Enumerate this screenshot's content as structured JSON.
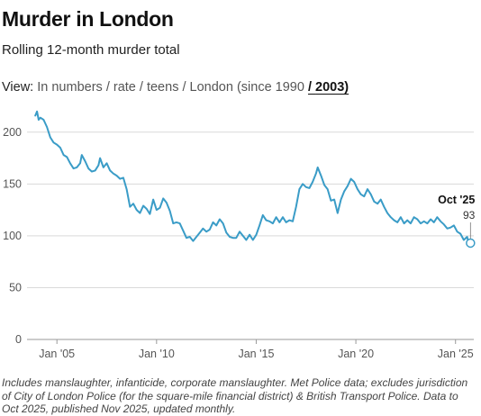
{
  "title": "Murder in London",
  "subtitle": "Rolling 12-month murder total",
  "view": {
    "prefix": "View:",
    "options": [
      "In numbers",
      "rate",
      "teens",
      "London (since 1990",
      "2003)"
    ],
    "separator": "/",
    "active_index": 4
  },
  "footnote": "Includes manslaughter, infanticide, corporate manslaughter. Met Police data; excludes jurisdiction of City of London Police (for the square-mile financial district) & British Transport Police. Data to Oct 2025, published Nov 2025, updated monthly.",
  "colors": {
    "line": "#3a9cc7",
    "grid": "#d9d9d9",
    "axis": "#555555",
    "text": "#222222"
  },
  "chart_data": {
    "type": "line",
    "title": "Murder in London",
    "subtitle": "Rolling 12-month murder total",
    "xlabel": "",
    "ylabel": "",
    "ylim": [
      0,
      225
    ],
    "xlim": [
      "2003-07",
      "2025-12"
    ],
    "yticks": [
      0,
      50,
      100,
      150,
      200
    ],
    "xticks": [
      {
        "label": "Jan '05",
        "date": "2005-01"
      },
      {
        "label": "Jan '10",
        "date": "2010-01"
      },
      {
        "label": "Jan '15",
        "date": "2015-01"
      },
      {
        "label": "Jan '20",
        "date": "2020-01"
      },
      {
        "label": "Jan '25",
        "date": "2025-01"
      }
    ],
    "grid": true,
    "series": [
      {
        "values": [
          [
            "2003-12",
            216
          ],
          [
            "2004-01",
            220
          ],
          [
            "2004-02",
            212
          ],
          [
            "2004-03",
            214
          ],
          [
            "2004-05",
            212
          ],
          [
            "2004-07",
            205
          ],
          [
            "2004-09",
            195
          ],
          [
            "2004-11",
            190
          ],
          [
            "2005-01",
            188
          ],
          [
            "2005-03",
            185
          ],
          [
            "2005-05",
            178
          ],
          [
            "2005-07",
            176
          ],
          [
            "2005-09",
            170
          ],
          [
            "2005-11",
            165
          ],
          [
            "2006-01",
            166
          ],
          [
            "2006-03",
            170
          ],
          [
            "2006-04",
            178
          ],
          [
            "2006-06",
            172
          ],
          [
            "2006-08",
            165
          ],
          [
            "2006-10",
            162
          ],
          [
            "2006-12",
            163
          ],
          [
            "2007-02",
            168
          ],
          [
            "2007-03",
            175
          ],
          [
            "2007-05",
            166
          ],
          [
            "2007-07",
            170
          ],
          [
            "2007-09",
            163
          ],
          [
            "2007-11",
            160
          ],
          [
            "2008-01",
            158
          ],
          [
            "2008-03",
            155
          ],
          [
            "2008-05",
            156
          ],
          [
            "2008-07",
            145
          ],
          [
            "2008-09",
            128
          ],
          [
            "2008-11",
            131
          ],
          [
            "2009-01",
            125
          ],
          [
            "2009-03",
            122
          ],
          [
            "2009-05",
            129
          ],
          [
            "2009-07",
            126
          ],
          [
            "2009-09",
            121
          ],
          [
            "2009-11",
            135
          ],
          [
            "2010-01",
            125
          ],
          [
            "2010-03",
            127
          ],
          [
            "2010-05",
            136
          ],
          [
            "2010-07",
            132
          ],
          [
            "2010-09",
            124
          ],
          [
            "2010-11",
            112
          ],
          [
            "2011-01",
            113
          ],
          [
            "2011-03",
            112
          ],
          [
            "2011-05",
            105
          ],
          [
            "2011-07",
            98
          ],
          [
            "2011-09",
            99
          ],
          [
            "2011-11",
            95
          ],
          [
            "2012-01",
            99
          ],
          [
            "2012-03",
            103
          ],
          [
            "2012-05",
            107
          ],
          [
            "2012-07",
            104
          ],
          [
            "2012-09",
            106
          ],
          [
            "2012-11",
            113
          ],
          [
            "2013-01",
            110
          ],
          [
            "2013-03",
            116
          ],
          [
            "2013-05",
            112
          ],
          [
            "2013-07",
            103
          ],
          [
            "2013-09",
            99
          ],
          [
            "2013-11",
            98
          ],
          [
            "2014-01",
            98
          ],
          [
            "2014-03",
            104
          ],
          [
            "2014-05",
            100
          ],
          [
            "2014-07",
            96
          ],
          [
            "2014-09",
            101
          ],
          [
            "2014-11",
            96
          ],
          [
            "2015-01",
            101
          ],
          [
            "2015-03",
            110
          ],
          [
            "2015-05",
            120
          ],
          [
            "2015-07",
            115
          ],
          [
            "2015-09",
            114
          ],
          [
            "2015-11",
            112
          ],
          [
            "2016-01",
            118
          ],
          [
            "2016-03",
            113
          ],
          [
            "2016-05",
            118
          ],
          [
            "2016-07",
            113
          ],
          [
            "2016-09",
            115
          ],
          [
            "2016-11",
            114
          ],
          [
            "2017-01",
            128
          ],
          [
            "2017-03",
            145
          ],
          [
            "2017-05",
            150
          ],
          [
            "2017-07",
            147
          ],
          [
            "2017-09",
            146
          ],
          [
            "2017-11",
            152
          ],
          [
            "2018-01",
            160
          ],
          [
            "2018-02",
            166
          ],
          [
            "2018-04",
            158
          ],
          [
            "2018-06",
            149
          ],
          [
            "2018-08",
            145
          ],
          [
            "2018-10",
            134
          ],
          [
            "2018-12",
            135
          ],
          [
            "2019-02",
            122
          ],
          [
            "2019-04",
            135
          ],
          [
            "2019-06",
            143
          ],
          [
            "2019-08",
            148
          ],
          [
            "2019-10",
            155
          ],
          [
            "2019-12",
            152
          ],
          [
            "2020-02",
            145
          ],
          [
            "2020-04",
            140
          ],
          [
            "2020-06",
            138
          ],
          [
            "2020-08",
            145
          ],
          [
            "2020-10",
            140
          ],
          [
            "2020-12",
            133
          ],
          [
            "2021-02",
            131
          ],
          [
            "2021-04",
            135
          ],
          [
            "2021-06",
            128
          ],
          [
            "2021-08",
            122
          ],
          [
            "2021-10",
            118
          ],
          [
            "2021-12",
            115
          ],
          [
            "2022-02",
            113
          ],
          [
            "2022-04",
            118
          ],
          [
            "2022-06",
            112
          ],
          [
            "2022-08",
            115
          ],
          [
            "2022-10",
            112
          ],
          [
            "2022-12",
            118
          ],
          [
            "2023-02",
            116
          ],
          [
            "2023-04",
            112
          ],
          [
            "2023-06",
            114
          ],
          [
            "2023-08",
            112
          ],
          [
            "2023-10",
            116
          ],
          [
            "2023-12",
            113
          ],
          [
            "2024-02",
            118
          ],
          [
            "2024-04",
            114
          ],
          [
            "2024-06",
            111
          ],
          [
            "2024-08",
            107
          ],
          [
            "2024-10",
            108
          ],
          [
            "2024-12",
            110
          ],
          [
            "2025-02",
            104
          ],
          [
            "2025-04",
            102
          ],
          [
            "2025-06",
            96
          ],
          [
            "2025-08",
            99
          ],
          [
            "2025-09",
            92
          ],
          [
            "2025-10",
            93
          ]
        ]
      }
    ],
    "annotations": [
      {
        "label": "Oct '25",
        "value": "93",
        "date": "2025-10",
        "y": 93
      }
    ]
  }
}
